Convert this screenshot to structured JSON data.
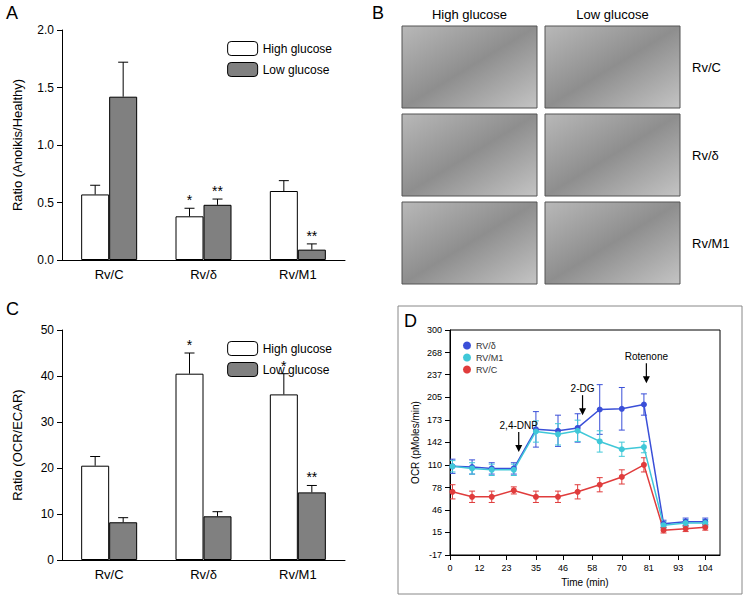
{
  "chart_data": [
    {
      "panel": "A",
      "type": "bar",
      "ylabel": "Ratio (Anoikis/Healthy)",
      "categories": [
        "Rv/C",
        "Rv/δ",
        "Rv/M1"
      ],
      "series": [
        {
          "name": "High glucose",
          "color": "#ffffff",
          "values": [
            0.57,
            0.38,
            0.6
          ],
          "errors": [
            0.08,
            0.07,
            0.09
          ],
          "significance": [
            null,
            "*",
            null
          ]
        },
        {
          "name": "Low glucose",
          "color": "#808080",
          "values": [
            1.42,
            0.48,
            0.09
          ],
          "errors": [
            0.3,
            0.05,
            0.05
          ],
          "significance": [
            null,
            "**",
            "**"
          ]
        }
      ],
      "ylim": [
        0,
        2.0
      ],
      "yticks": [
        {
          "value": 0,
          "label": "0.0"
        },
        0.5,
        {
          "value": 1,
          "label": "1.0"
        },
        1.5,
        {
          "value": 2,
          "label": "2.0"
        }
      ],
      "legend": "upper right",
      "grid": false
    },
    {
      "panel": "B",
      "type": "image_grid",
      "columns": [
        "High glucose",
        "Low glucose"
      ],
      "rows": [
        "Rv/C",
        "Rv/δ",
        "Rv/M1"
      ]
    },
    {
      "panel": "C",
      "type": "bar",
      "ylabel": "Ratio (OCR/ECAR)",
      "categories": [
        "Rv/C",
        "Rv/δ",
        "Rv/M1"
      ],
      "series": [
        {
          "name": "High glucose",
          "color": "#ffffff",
          "values": [
            20.5,
            40.5,
            36
          ],
          "errors": [
            2,
            4.5,
            4.5
          ],
          "significance": [
            null,
            "*",
            "*"
          ]
        },
        {
          "name": "Low glucose",
          "color": "#808080",
          "values": [
            8.2,
            9.5,
            14.7
          ],
          "errors": [
            1,
            1,
            1.5
          ],
          "significance": [
            null,
            null,
            "**"
          ]
        }
      ],
      "ylim": [
        0,
        50
      ],
      "yticks": [
        0,
        10,
        20,
        30,
        40,
        50
      ],
      "legend": "upper right",
      "grid": false
    },
    {
      "panel": "D",
      "type": "line",
      "xlabel": "Time (min)",
      "ylabel": "OCR (pMoles/min)",
      "x": [
        1,
        9,
        17,
        26,
        35,
        44,
        52,
        61,
        70,
        79,
        87,
        96,
        104
      ],
      "series": [
        {
          "name": "RV/δ",
          "color": "#3a4fd8",
          "values": [
            108,
            107,
            105,
            105,
            160,
            158,
            162,
            188,
            189,
            195,
            27,
            30,
            30
          ],
          "errors": [
            10,
            10,
            8,
            8,
            25,
            22,
            20,
            35,
            30,
            15,
            5,
            5,
            5
          ]
        },
        {
          "name": "RV/M1",
          "color": "#40c8d8",
          "values": [
            108,
            105,
            103,
            103,
            157,
            153,
            158,
            143,
            132,
            135,
            25,
            28,
            28
          ],
          "errors": [
            8,
            8,
            8,
            8,
            15,
            15,
            15,
            15,
            10,
            8,
            5,
            5,
            5
          ]
        },
        {
          "name": "RV/C",
          "color": "#e03c3c",
          "values": [
            72,
            65,
            65,
            74,
            65,
            65,
            72,
            82,
            93,
            110,
            18,
            20,
            22
          ],
          "errors": [
            10,
            8,
            8,
            5,
            8,
            8,
            10,
            10,
            10,
            10,
            4,
            4,
            4
          ]
        }
      ],
      "xlim": [
        0,
        110
      ],
      "xticks": [
        0,
        12,
        23,
        35,
        46,
        58,
        70,
        81,
        93,
        104
      ],
      "ylim": [
        -17,
        300
      ],
      "yticks": [
        -17,
        15,
        46,
        78,
        110,
        142,
        173,
        205,
        237,
        268,
        300
      ],
      "annotations": [
        {
          "text": "2,4-DNP",
          "x": 28,
          "y": 128
        },
        {
          "text": "2-DG",
          "x": 54,
          "y": 180
        },
        {
          "text": "Rotenone",
          "x": 80,
          "y": 225
        }
      ],
      "legend": "upper left",
      "marker": "circle",
      "grid": false
    }
  ]
}
